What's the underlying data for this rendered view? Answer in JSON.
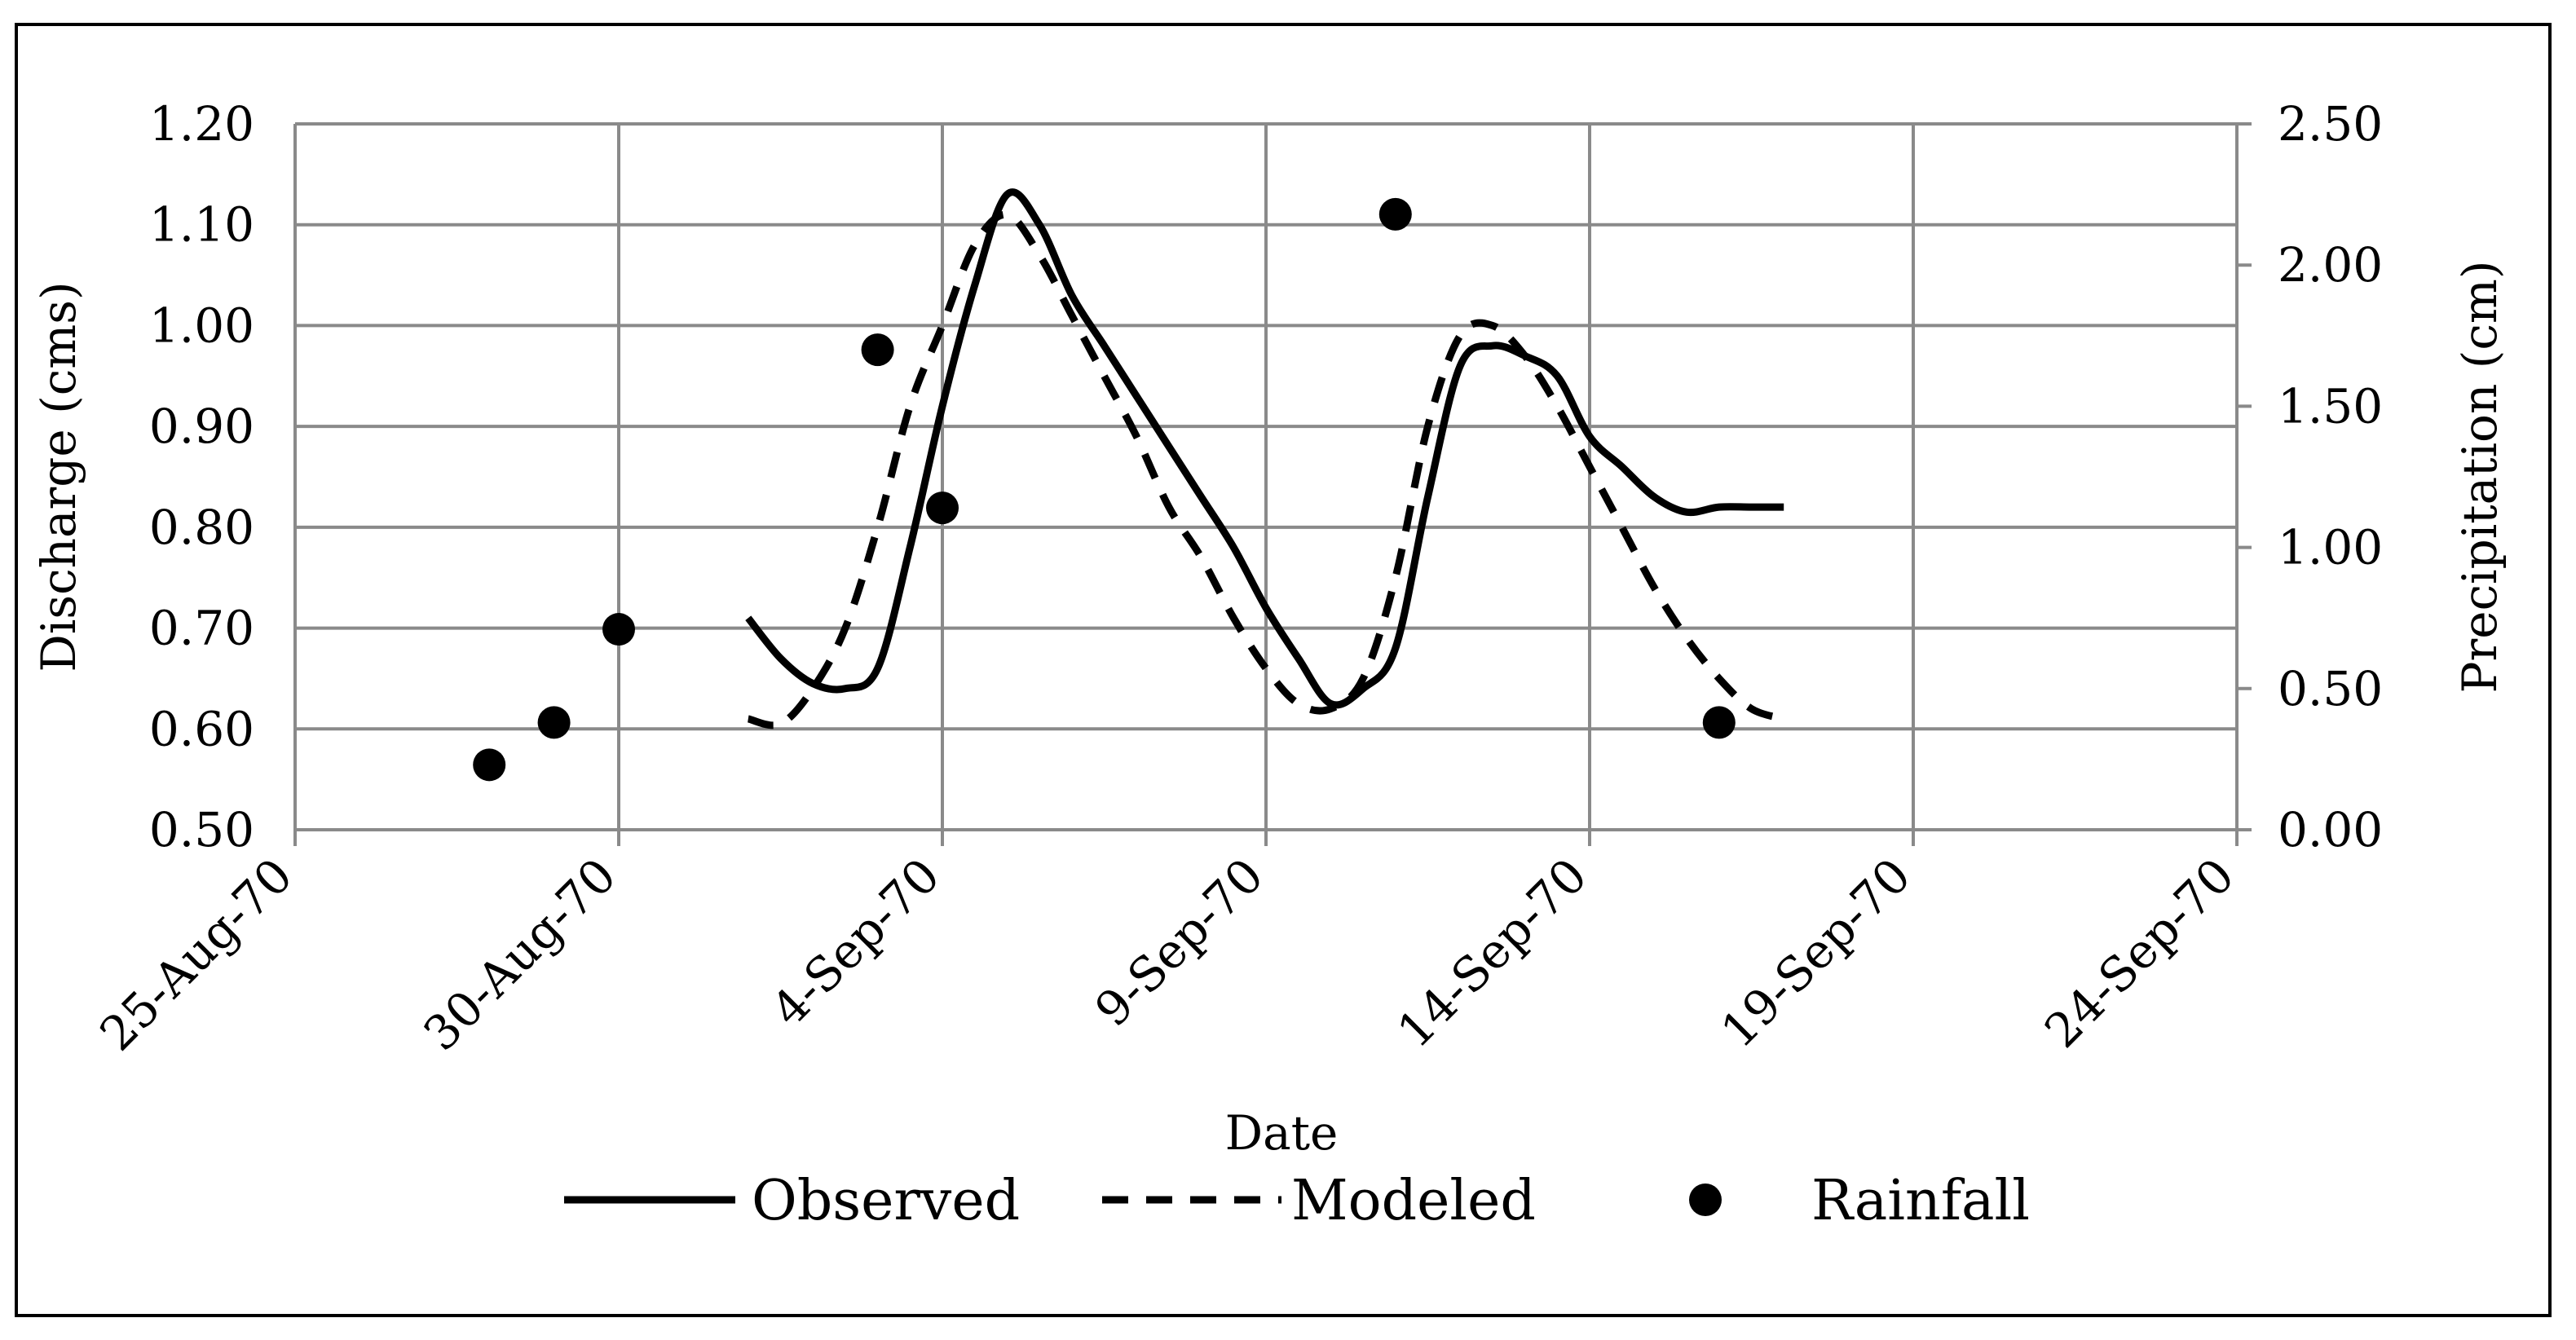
{
  "chart_data": {
    "type": "line",
    "title": "",
    "xlabel": "Date",
    "ylabel": "Discharge (cms)",
    "y2label": "Precipitation (cm)",
    "x_ticks": [
      "25-Aug-70",
      "30-Aug-70",
      "4-Sep-70",
      "9-Sep-70",
      "14-Sep-70",
      "19-Sep-70",
      "24-Sep-70"
    ],
    "x_tick_days": [
      0,
      5,
      10,
      15,
      20,
      25,
      30
    ],
    "xlim": [
      0,
      30
    ],
    "ylim": [
      0.5,
      1.2
    ],
    "y_ticks": [
      "0.50",
      "0.60",
      "0.70",
      "0.80",
      "0.90",
      "1.00",
      "1.10",
      "1.20"
    ],
    "y2lim": [
      0,
      2.5
    ],
    "y2_ticks": [
      "0.00",
      "0.50",
      "1.00",
      "1.50",
      "2.00",
      "2.50"
    ],
    "grid": true,
    "legend_position": "bottom",
    "series": [
      {
        "name": "Observed",
        "axis": "left",
        "style": "solid",
        "x": [
          7,
          7.5,
          8,
          8.5,
          9,
          9.5,
          10,
          10.5,
          11,
          11.5,
          12,
          12.5,
          13,
          13.5,
          14,
          14.5,
          15,
          15.5,
          16,
          16.5,
          17,
          17.5,
          18,
          18.5,
          19,
          19.5,
          20,
          20.5,
          21,
          21.5,
          22,
          22.5,
          23
        ],
        "values": [
          0.71,
          0.67,
          0.645,
          0.64,
          0.66,
          0.78,
          0.92,
          1.04,
          1.13,
          1.1,
          1.03,
          0.98,
          0.93,
          0.88,
          0.83,
          0.78,
          0.72,
          0.67,
          0.625,
          0.64,
          0.68,
          0.83,
          0.96,
          0.98,
          0.97,
          0.95,
          0.89,
          0.86,
          0.83,
          0.815,
          0.82,
          0.82,
          0.82
        ]
      },
      {
        "name": "Modeled",
        "axis": "left",
        "style": "dashed",
        "x": [
          7,
          7.5,
          8,
          8.5,
          9,
          9.5,
          10,
          10.5,
          11,
          11.5,
          12,
          12.5,
          13,
          13.5,
          14,
          14.5,
          15,
          15.5,
          16,
          16.5,
          17,
          17.5,
          18,
          18.5,
          19,
          19.5,
          20,
          20.5,
          21,
          21.5,
          22,
          22.5,
          23
        ],
        "values": [
          0.61,
          0.605,
          0.64,
          0.7,
          0.8,
          0.92,
          1.0,
          1.08,
          1.11,
          1.07,
          1.01,
          0.95,
          0.89,
          0.82,
          0.77,
          0.71,
          0.66,
          0.625,
          0.62,
          0.65,
          0.75,
          0.9,
          0.99,
          1.0,
          0.97,
          0.92,
          0.86,
          0.8,
          0.74,
          0.69,
          0.65,
          0.62,
          0.61
        ]
      },
      {
        "name": "Rainfall",
        "axis": "right",
        "style": "markers",
        "x": [
          3,
          4,
          5,
          9,
          10,
          17,
          22
        ],
        "values": [
          0.23,
          0.38,
          0.71,
          1.7,
          1.14,
          2.18,
          0.38
        ]
      }
    ],
    "legend": [
      "Observed",
      "Modeled",
      "Rainfall"
    ]
  }
}
